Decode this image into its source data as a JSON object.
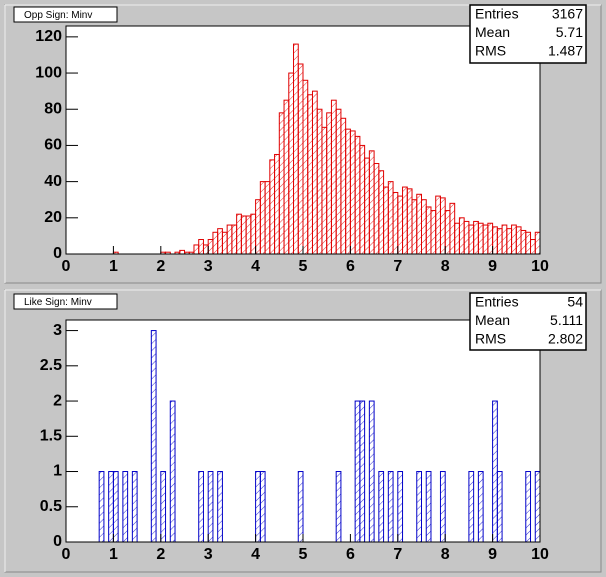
{
  "chart_data": [
    {
      "type": "histogram",
      "title": "Opp Sign: Minv",
      "color": "#e00000",
      "stats": {
        "labels": [
          "Entries",
          "Mean",
          "RMS"
        ],
        "values": [
          3167,
          5.71,
          1.487
        ]
      },
      "bins": [
        0,
        0.1,
        0.2,
        0.3,
        0.4,
        0.5,
        0.6,
        0.7,
        0.8,
        0.9,
        1,
        1.1,
        1.2,
        1.3,
        1.4,
        1.5,
        1.6,
        1.7,
        1.8,
        1.9,
        2,
        2.1,
        2.2,
        2.3,
        2.4,
        2.5,
        2.6,
        2.7,
        2.8,
        2.9,
        3,
        3.1,
        3.2,
        3.3,
        3.4,
        3.5,
        3.6,
        3.7,
        3.8,
        3.9,
        4,
        4.1,
        4.2,
        4.3,
        4.4,
        4.5,
        4.6,
        4.7,
        4.8,
        4.9,
        5,
        5.1,
        5.2,
        5.3,
        5.4,
        5.5,
        5.6,
        5.7,
        5.8,
        5.9,
        6,
        6.1,
        6.2,
        6.3,
        6.4,
        6.5,
        6.6,
        6.7,
        6.8,
        6.9,
        7,
        7.1,
        7.2,
        7.3,
        7.4,
        7.5,
        7.6,
        7.7,
        7.8,
        7.9,
        8,
        8.1,
        8.2,
        8.3,
        8.4,
        8.5,
        8.6,
        8.7,
        8.8,
        8.9,
        9,
        9.1,
        9.2,
        9.3,
        9.4,
        9.5,
        9.6,
        9.7,
        9.8,
        9.9,
        10
      ],
      "values": [
        0,
        0,
        0,
        0,
        0,
        0,
        0,
        0,
        0,
        0,
        1,
        0,
        0,
        0,
        0,
        0,
        0,
        0,
        0,
        0,
        1,
        1,
        0,
        1,
        2,
        1,
        1,
        5,
        8,
        5,
        8,
        12,
        14,
        12,
        16,
        16,
        22,
        21,
        21,
        22,
        30,
        40,
        40,
        52,
        55,
        78,
        85,
        100,
        116,
        105,
        96,
        88,
        90,
        80,
        70,
        78,
        85,
        80,
        75,
        69,
        68,
        65,
        60,
        53,
        57,
        50,
        46,
        37,
        40,
        34,
        32,
        37,
        36,
        30,
        33,
        30,
        26,
        24,
        32,
        31,
        24,
        28,
        17,
        20,
        18,
        16,
        18,
        17,
        16,
        17,
        15,
        14,
        16,
        14,
        16,
        15,
        13,
        12,
        8,
        12
      ],
      "xlim": [
        0,
        10
      ],
      "xticks": [
        0,
        1,
        2,
        3,
        4,
        5,
        6,
        7,
        8,
        9,
        10
      ],
      "ylim": [
        0,
        126
      ],
      "yticks": [
        0,
        20,
        40,
        60,
        80,
        100,
        120
      ]
    },
    {
      "type": "histogram",
      "title": "Like Sign: Minv",
      "color": "#0000c8",
      "stats": {
        "labels": [
          "Entries",
          "Mean",
          "RMS"
        ],
        "values": [
          54,
          5.111,
          2.802
        ]
      },
      "bins": [
        0,
        0.1,
        0.2,
        0.3,
        0.4,
        0.5,
        0.6,
        0.7,
        0.8,
        0.9,
        1,
        1.1,
        1.2,
        1.3,
        1.4,
        1.5,
        1.6,
        1.7,
        1.8,
        1.9,
        2,
        2.1,
        2.2,
        2.3,
        2.4,
        2.5,
        2.6,
        2.7,
        2.8,
        2.9,
        3,
        3.1,
        3.2,
        3.3,
        3.4,
        3.5,
        3.6,
        3.7,
        3.8,
        3.9,
        4,
        4.1,
        4.2,
        4.3,
        4.4,
        4.5,
        4.6,
        4.7,
        4.8,
        4.9,
        5,
        5.1,
        5.2,
        5.3,
        5.4,
        5.5,
        5.6,
        5.7,
        5.8,
        5.9,
        6,
        6.1,
        6.2,
        6.3,
        6.4,
        6.5,
        6.6,
        6.7,
        6.8,
        6.9,
        7,
        7.1,
        7.2,
        7.3,
        7.4,
        7.5,
        7.6,
        7.7,
        7.8,
        7.9,
        8,
        8.1,
        8.2,
        8.3,
        8.4,
        8.5,
        8.6,
        8.7,
        8.8,
        8.9,
        9,
        9.1,
        9.2,
        9.3,
        9.4,
        9.5,
        9.6,
        9.7,
        9.8,
        9.9,
        10
      ],
      "values": [
        0,
        0,
        0,
        0,
        0,
        0,
        0,
        1,
        0,
        1,
        1,
        0,
        1,
        0,
        1,
        0,
        0,
        0,
        3,
        0,
        1,
        0,
        2,
        0,
        0,
        0,
        0,
        0,
        1,
        0,
        1,
        0,
        1,
        0,
        0,
        0,
        0,
        0,
        0,
        0,
        1,
        1,
        0,
        0,
        0,
        0,
        0,
        0,
        0,
        1,
        0,
        0,
        0,
        0,
        0,
        0,
        0,
        1,
        0,
        0,
        0,
        2,
        2,
        0,
        2,
        0,
        1,
        0,
        1,
        0,
        1,
        0,
        0,
        0,
        1,
        0,
        1,
        0,
        0,
        1,
        0,
        0,
        0,
        0,
        0,
        1,
        0,
        1,
        0,
        0,
        2,
        1,
        0,
        0,
        0,
        0,
        0,
        1,
        0,
        1
      ],
      "xlim": [
        0,
        10
      ],
      "xticks": [
        0,
        1,
        2,
        3,
        4,
        5,
        6,
        7,
        8,
        9,
        10
      ],
      "ylim": [
        0,
        3.15
      ],
      "yticks": [
        0,
        0.5,
        1,
        1.5,
        2,
        2.5,
        3
      ]
    }
  ]
}
